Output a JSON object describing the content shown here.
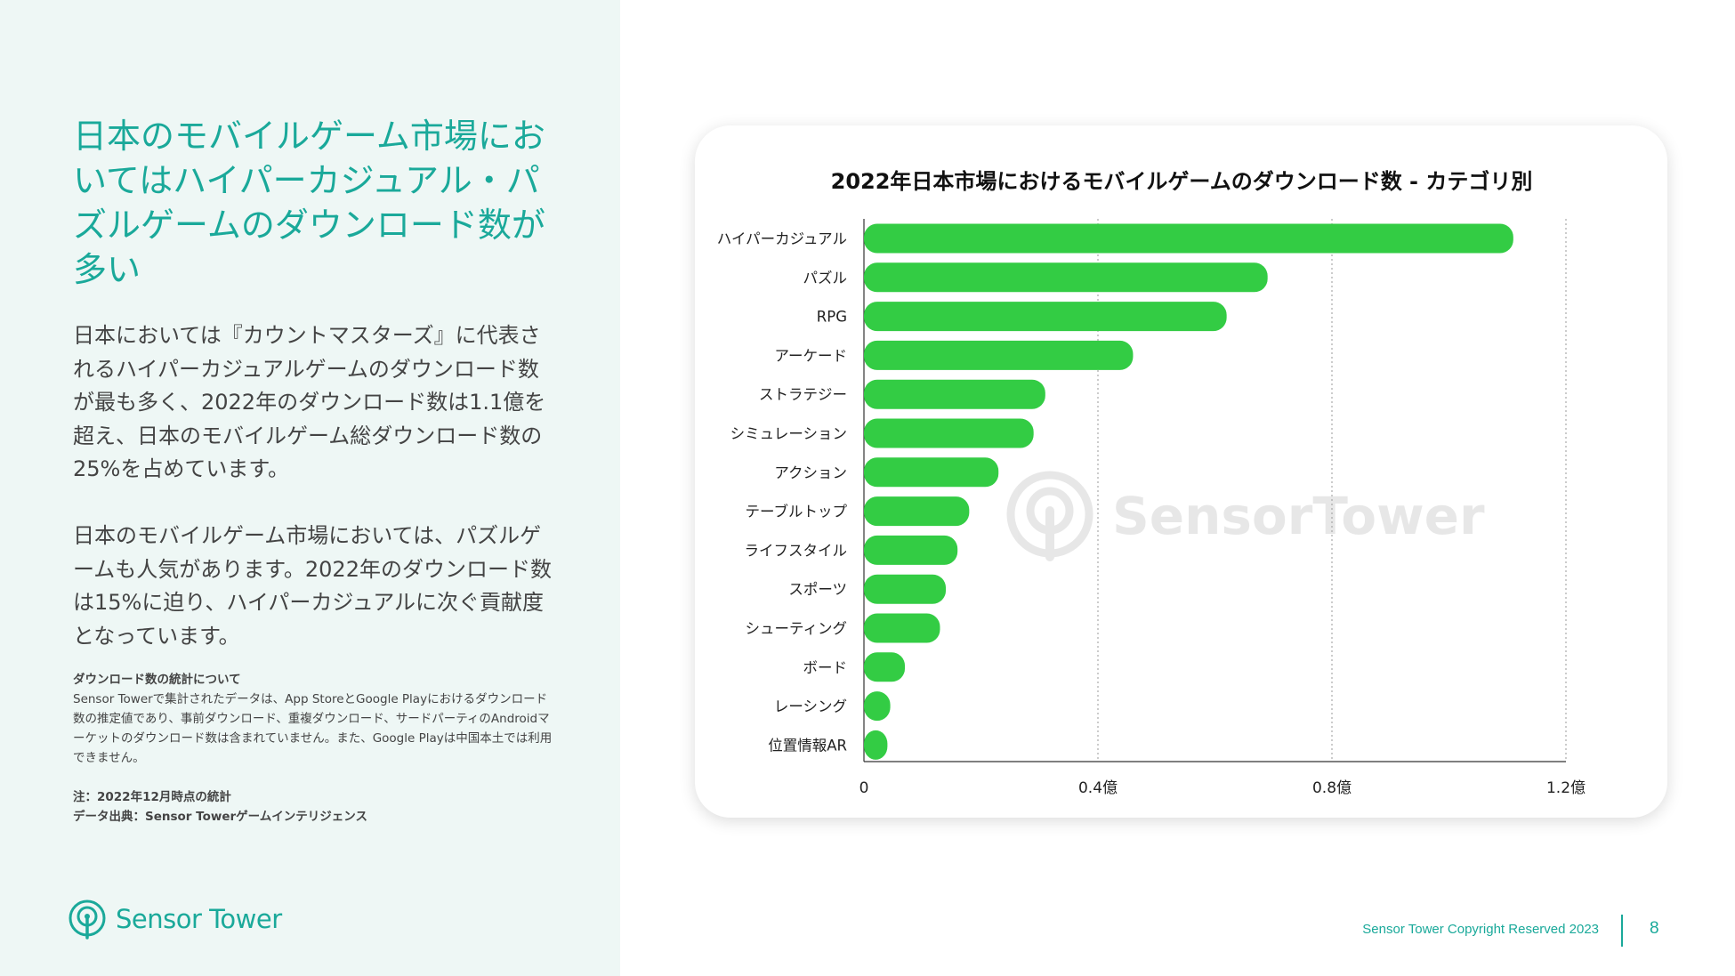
{
  "slide": {
    "headline": "日本のモバイルゲーム市場においてはハイパーカジュアル・パズルゲームのダウンロード数が多い",
    "paragraph1": "日本においては『カウントマスターズ』に代表されるハイパーカジュアルゲームのダウンロード数が最も多く、2022年のダウンロード数は1.1億を超え、日本のモバイルゲーム総ダウンロード数の25%を占めています。",
    "paragraph2": "日本のモバイルゲーム市場においては、パズルゲームも人気があります。2022年のダウンロード数は15%に迫り、ハイパーカジュアルに次ぐ貢献度となっています。",
    "notes": {
      "heading": "ダウンロード数の統計について",
      "body": "Sensor Towerで集計されたデータは、App StoreとGoogle Playにおけるダウンロード数の推定値であり、事前ダウンロード、重複ダウンロード、サードパーティのAndroidマーケットのダウンロード数は含まれていません。また、Google Playは中国本土では利用できません。",
      "date_note": "注：2022年12月時点の統計",
      "source": "データ出典：Sensor Towerゲームインテリジェンス"
    },
    "logo_text": "Sensor Tower",
    "footer_copyright": "Sensor Tower Copyright Reserved 2023",
    "page_number": "8"
  },
  "colors": {
    "accent": "#1aa99a",
    "bar": "#33cc44",
    "panel_bg": "#eef7f5"
  },
  "chart_data": {
    "type": "bar",
    "orientation": "horizontal",
    "title": "2022年日本市場におけるモバイルゲームのダウンロード数 - カテゴリ別",
    "categories": [
      "ハイパーカジュアル",
      "パズル",
      "RPG",
      "アーケード",
      "ストラテジー",
      "シミュレーション",
      "アクション",
      "テーブルトップ",
      "ライフスタイル",
      "スポーツ",
      "シューティング",
      "ボード",
      "レーシング",
      "位置情報AR"
    ],
    "values": [
      1.11,
      0.69,
      0.62,
      0.46,
      0.31,
      0.29,
      0.23,
      0.18,
      0.16,
      0.14,
      0.13,
      0.07,
      0.045,
      0.035
    ],
    "value_unit": "億",
    "xlim": [
      0,
      1.2
    ],
    "x_ticks": [
      0,
      0.4,
      0.8,
      1.2
    ],
    "x_tick_labels": [
      "0",
      "0.4億",
      "0.8億",
      "1.2億"
    ],
    "grid": "vertical dotted",
    "watermark": "SensorTower"
  }
}
